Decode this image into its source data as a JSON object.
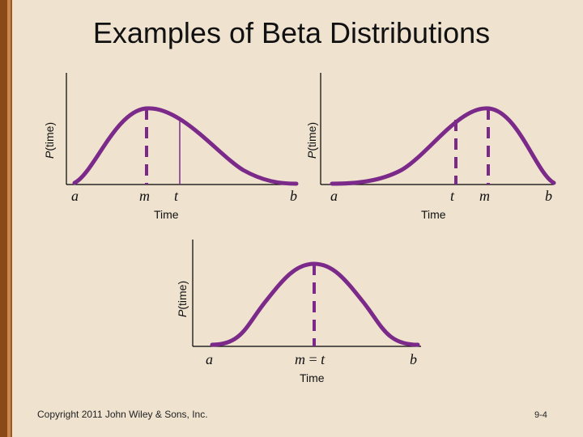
{
  "slide": {
    "title": "Examples of Beta Distributions",
    "copyright": "Copyright 2011 John Wiley & Sons, Inc.",
    "page_number": "9-4"
  },
  "colors": {
    "curve": "#7b2a8a",
    "axis": "#000000",
    "background": "#efe3d0",
    "stripe_dark": "#8a4a17",
    "stripe_light": "#c98a52"
  },
  "panels": [
    {
      "id": "left-skewed",
      "y_axis_prefix": "P",
      "y_axis_suffix": "(time)",
      "x_axis_label": "Time",
      "labels": {
        "a": "a",
        "m": "m",
        "t": "t",
        "b": "b"
      }
    },
    {
      "id": "right-skewed",
      "y_axis_prefix": "P",
      "y_axis_suffix": "(time)",
      "x_axis_label": "Time",
      "labels": {
        "a": "a",
        "t": "t",
        "m": "m",
        "b": "b"
      }
    },
    {
      "id": "symmetric",
      "y_axis_prefix": "P",
      "y_axis_suffix": "(time)",
      "x_axis_label": "Time",
      "labels": {
        "a": "a",
        "m": "m",
        "eq": " = ",
        "t": "t",
        "b": "b"
      }
    }
  ]
}
